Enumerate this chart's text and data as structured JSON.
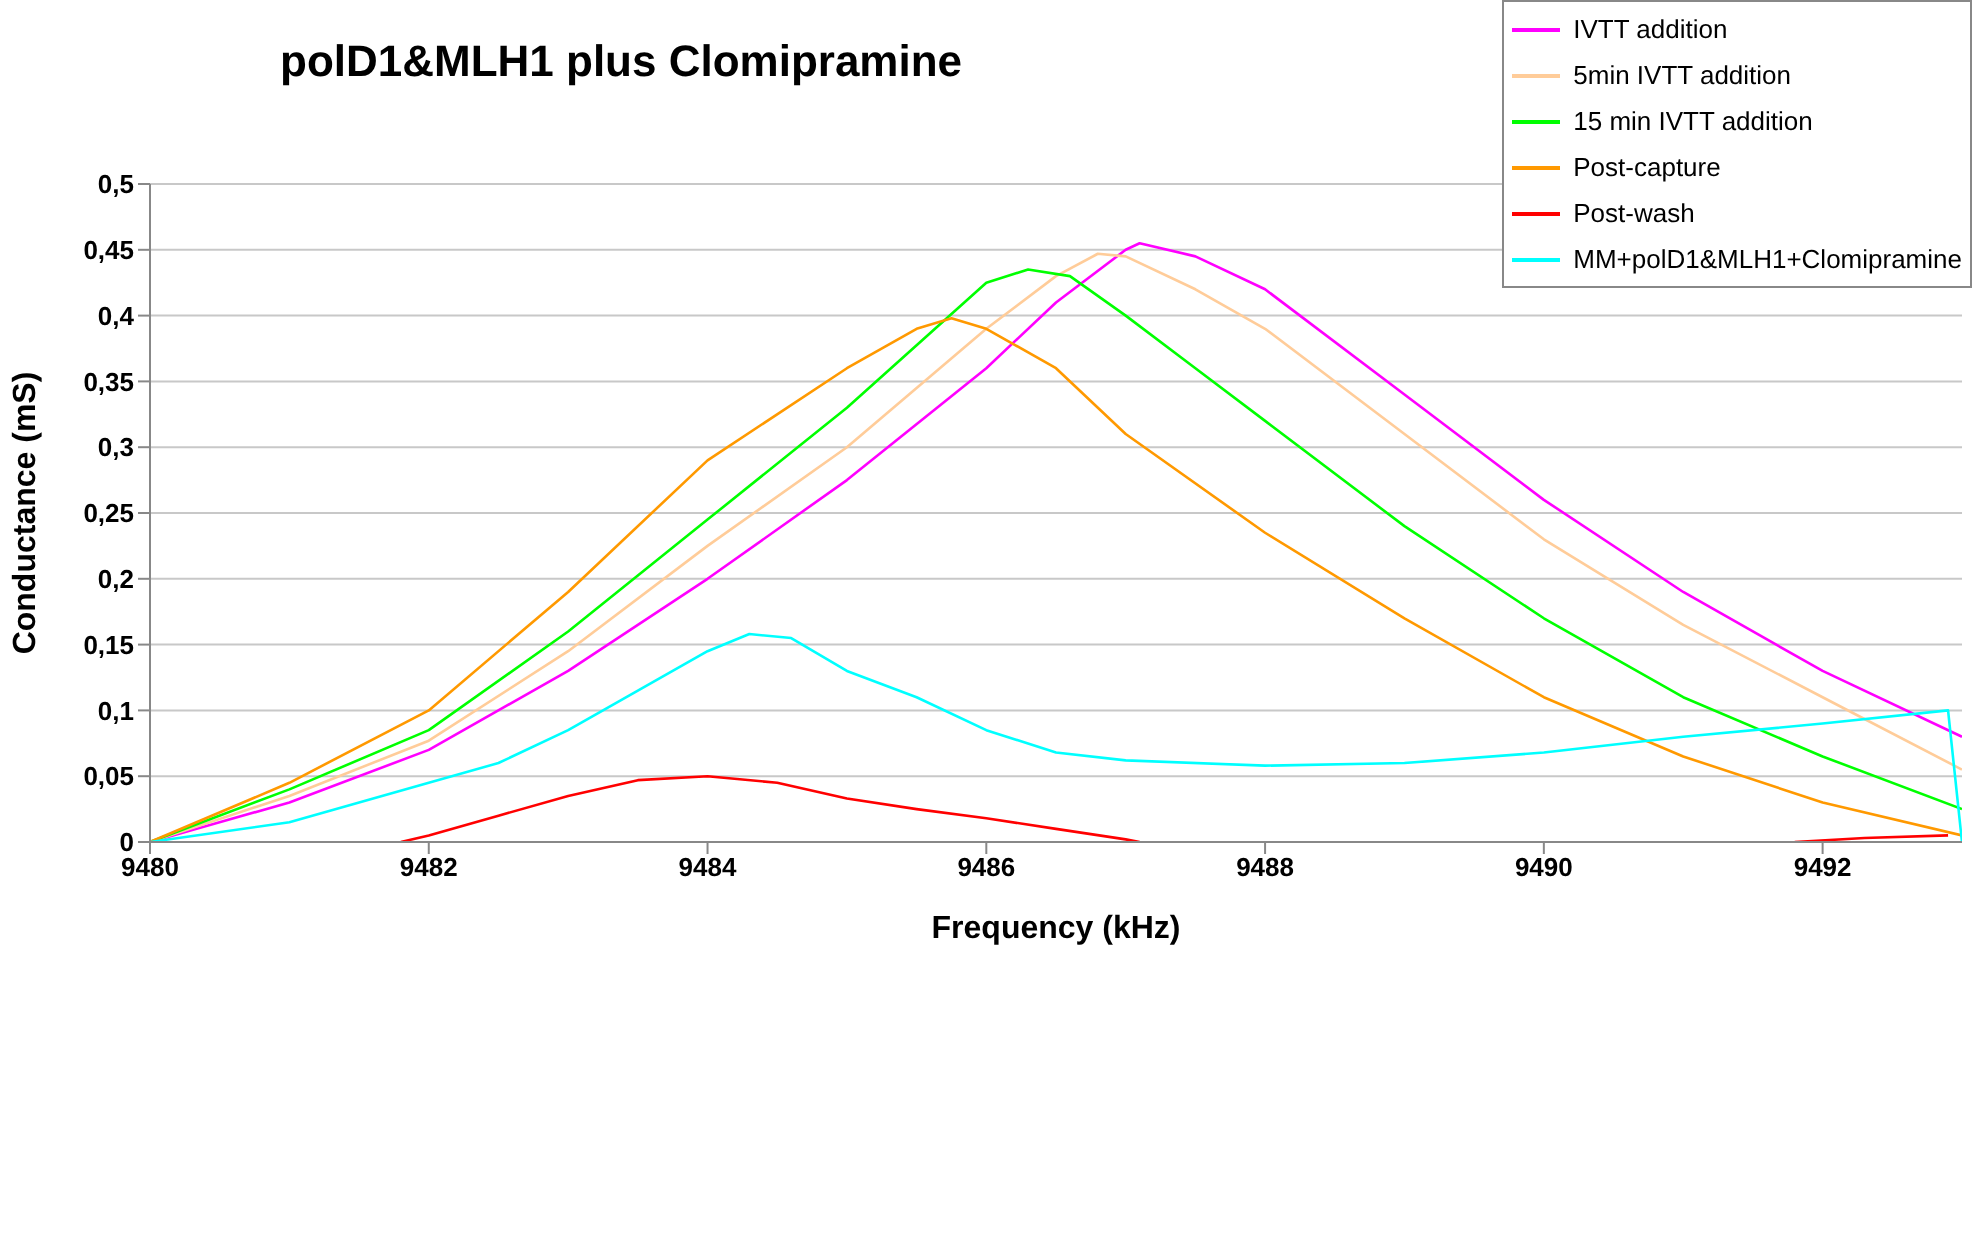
{
  "chart_data": {
    "type": "line",
    "title": "polD1&MLH1 plus Clomipramine",
    "xlabel": "Frequency (kHz)",
    "ylabel": "Conductance (mS)",
    "xlim": [
      9480,
      9493
    ],
    "xticks": [
      9480,
      9482,
      9484,
      9486,
      9488,
      9490,
      9492
    ],
    "ylim": [
      0,
      0.5
    ],
    "yticks": [
      {
        "value": 0,
        "label": "0"
      },
      {
        "value": 0.05,
        "label": "0,05"
      },
      {
        "value": 0.1,
        "label": "0,1"
      },
      {
        "value": 0.15,
        "label": "0,15"
      },
      {
        "value": 0.2,
        "label": "0,2"
      },
      {
        "value": 0.25,
        "label": "0,25"
      },
      {
        "value": 0.3,
        "label": "0,3"
      },
      {
        "value": 0.35,
        "label": "0,35"
      },
      {
        "value": 0.4,
        "label": "0,4"
      },
      {
        "value": 0.45,
        "label": "0,45"
      },
      {
        "value": 0.5,
        "label": "0,5"
      }
    ],
    "grid": "y",
    "legend": "top right",
    "marker": "none",
    "line_style": "solid",
    "series": [
      {
        "name": "IVTT addition",
        "color": "#ff00ff",
        "x": [
          9480,
          9481,
          9482,
          9483,
          9484,
          9485,
          9486,
          9486.5,
          9487,
          9487.1,
          9487.5,
          9488,
          9489,
          9490,
          9491,
          9492,
          9493
        ],
        "values": [
          0,
          0.03,
          0.07,
          0.13,
          0.2,
          0.275,
          0.36,
          0.41,
          0.45,
          0.455,
          0.445,
          0.42,
          0.34,
          0.26,
          0.19,
          0.13,
          0.08
        ]
      },
      {
        "name": "5min IVTT addition",
        "color": "#ffcc99",
        "x": [
          9480,
          9481,
          9482,
          9483,
          9484,
          9485,
          9486,
          9486.5,
          9486.8,
          9487,
          9487.5,
          9488,
          9489,
          9490,
          9491,
          9492,
          9493
        ],
        "values": [
          0,
          0.035,
          0.077,
          0.145,
          0.225,
          0.3,
          0.39,
          0.43,
          0.447,
          0.445,
          0.42,
          0.39,
          0.31,
          0.23,
          0.165,
          0.11,
          0.055
        ]
      },
      {
        "name": "15 min IVTT addition",
        "color": "#00ff00",
        "x": [
          9480,
          9481,
          9482,
          9483,
          9484,
          9485,
          9486,
          9486.3,
          9486.6,
          9487,
          9487.5,
          9488,
          9489,
          9490,
          9491,
          9492,
          9493
        ],
        "values": [
          0,
          0.04,
          0.085,
          0.16,
          0.245,
          0.33,
          0.425,
          0.435,
          0.43,
          0.4,
          0.36,
          0.32,
          0.24,
          0.17,
          0.11,
          0.065,
          0.025
        ]
      },
      {
        "name": "Post-capture",
        "color": "#ff9900",
        "x": [
          9480,
          9481,
          9482,
          9483,
          9484,
          9485,
          9485.5,
          9485.75,
          9486,
          9486.5,
          9487,
          9488,
          9489,
          9490,
          9491,
          9492,
          9493
        ],
        "values": [
          0,
          0.045,
          0.1,
          0.19,
          0.29,
          0.36,
          0.39,
          0.398,
          0.39,
          0.36,
          0.31,
          0.235,
          0.17,
          0.11,
          0.065,
          0.03,
          0.005
        ]
      },
      {
        "name": "Post-wash",
        "color": "#ff0000",
        "x": [
          9481.8,
          9482,
          9482.5,
          9483,
          9483.5,
          9484,
          9484.5,
          9485,
          9485.5,
          9486,
          9486.5,
          9487,
          9487.1,
          9489,
          9491.8,
          9492.3,
          9492.9
        ],
        "values": [
          0,
          0.005,
          0.02,
          0.035,
          0.047,
          0.05,
          0.045,
          0.033,
          0.025,
          0.018,
          0.01,
          0.002,
          0,
          null,
          0,
          0.003,
          0.005
        ]
      },
      {
        "name": "MM+polD1&MLH1+Clomipramine",
        "color": "#00ffff",
        "x": [
          9480,
          9481,
          9482,
          9482.5,
          9483,
          9483.5,
          9484,
          9484.3,
          9484.6,
          9485,
          9485.5,
          9486,
          9486.5,
          9487,
          9488,
          9489,
          9490,
          9491,
          9492,
          9492.9,
          9493
        ],
        "values": [
          0,
          0.015,
          0.045,
          0.06,
          0.085,
          0.115,
          0.145,
          0.158,
          0.155,
          0.13,
          0.11,
          0.085,
          0.068,
          0.062,
          0.058,
          0.06,
          0.068,
          0.08,
          0.09,
          0.1,
          0
        ]
      }
    ]
  }
}
